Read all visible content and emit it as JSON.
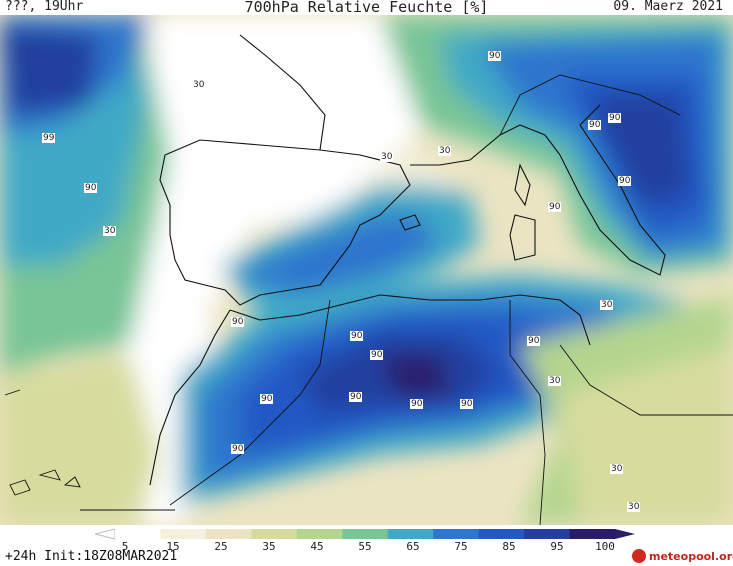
{
  "header": {
    "left": "???, 19Uhr",
    "title": "700hPa Relative Feuchte [%]",
    "right": "09. Maerz 2021"
  },
  "footer": {
    "left": "+24h Init:18Z08MAR2021",
    "logo": "meteopool.org"
  },
  "legend": {
    "labels": [
      "5",
      "15",
      "25",
      "35",
      "45",
      "55",
      "65",
      "75",
      "85",
      "95",
      "100"
    ],
    "colors": [
      "#ffffff",
      "#f5f1de",
      "#ebe4c2",
      "#d7dc9e",
      "#b4d58e",
      "#78c596",
      "#3fa9c6",
      "#2d76cd",
      "#2459c4",
      "#243f9f",
      "#2b1c6a"
    ]
  },
  "contour_labels": [
    "99",
    "30",
    "90",
    "30",
    "30",
    "90",
    "90",
    "90",
    "90",
    "90",
    "30",
    "90",
    "90",
    "90",
    "90",
    "90",
    "90",
    "90",
    "90",
    "30",
    "30",
    "30",
    "90",
    "30"
  ]
}
